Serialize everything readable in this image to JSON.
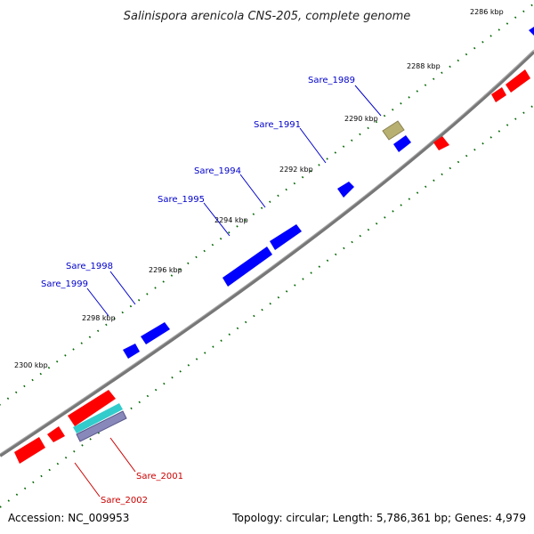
{
  "title": "Salinispora arenicola CNS-205, complete genome",
  "footer": {
    "accession": "Accession: NC_009953",
    "summary": "Topology: circular; Length: 5,786,361 bp; Genes: 4,979"
  },
  "ticks": [
    "2286 kbp",
    "2288 kbp",
    "2290 kbp",
    "2292 kbp",
    "2294 kbp",
    "2296 kbp",
    "2298 kbp",
    "2300 kbp"
  ],
  "gene_labels": [
    {
      "name": "Sare_1989",
      "strand": "forward"
    },
    {
      "name": "Sare_1991",
      "strand": "forward"
    },
    {
      "name": "Sare_1994",
      "strand": "forward"
    },
    {
      "name": "Sare_1995",
      "strand": "forward"
    },
    {
      "name": "Sare_1998",
      "strand": "forward"
    },
    {
      "name": "Sare_1999",
      "strand": "forward"
    },
    {
      "name": "Sare_2001",
      "strand": "reverse"
    },
    {
      "name": "Sare_2002",
      "strand": "reverse"
    }
  ],
  "colors": {
    "forward": "#0000ff",
    "reverse": "#ff0000",
    "forward_label": "#0000cc",
    "reverse_label": "#cc0000",
    "backbone": "#808080",
    "tick_mark": "#006600",
    "misc_feature": "#b8b070",
    "rna_feature": "#33cccc",
    "repeat_feature": "#9999cc"
  }
}
